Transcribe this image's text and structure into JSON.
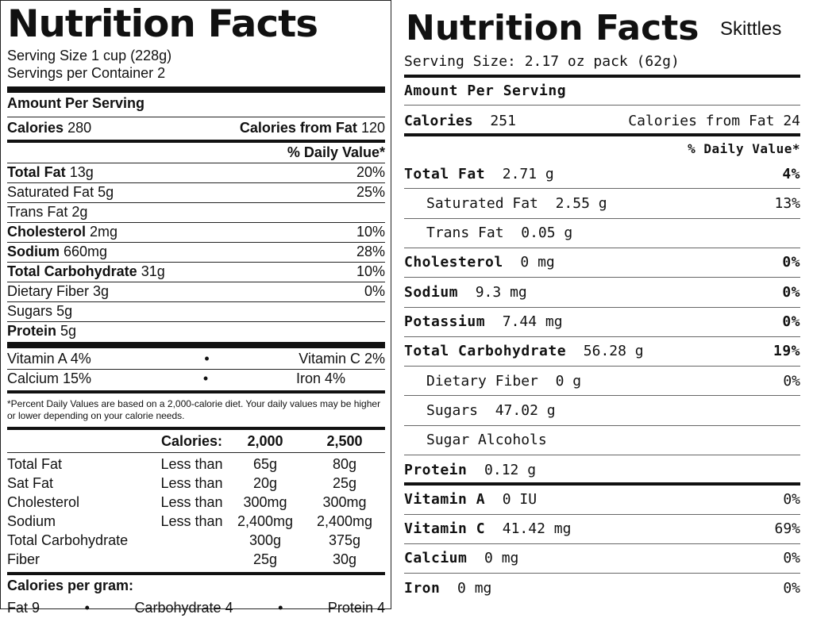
{
  "left_label": {
    "title": "Nutrition Facts",
    "serving_size": "Serving Size 1 cup (228g)",
    "servings_per_container": "Servings per Container 2",
    "amount_per_serving": "Amount Per Serving",
    "calories_label": "Calories",
    "calories_value": "280",
    "calories_from_fat_label": "Calories from Fat",
    "calories_from_fat_value": "120",
    "dv_header": "% Daily Value*",
    "nutrients": [
      {
        "name": "Total Fat",
        "amount": "13g",
        "dv": "20%",
        "bold": true
      },
      {
        "name": "Saturated Fat",
        "amount": "5g",
        "dv": "25%",
        "bold": false
      },
      {
        "name": "Trans Fat",
        "amount": "2g",
        "dv": "",
        "bold": false
      },
      {
        "name": "Cholesterol",
        "amount": "2mg",
        "dv": "10%",
        "bold": true
      },
      {
        "name": "Sodium",
        "amount": "660mg",
        "dv": "28%",
        "bold": true
      },
      {
        "name": "Total Carbohydrate",
        "amount": "31g",
        "dv": "10%",
        "bold": true
      },
      {
        "name": "Dietary Fiber",
        "amount": "3g",
        "dv": "0%",
        "bold": false
      },
      {
        "name": "Sugars",
        "amount": "5g",
        "dv": "",
        "bold": false
      },
      {
        "name": "Protein",
        "amount": "5g",
        "dv": "",
        "bold": true
      }
    ],
    "vitamins": {
      "vitamin_a": "Vitamin A 4%",
      "vitamin_c": "Vitamin C 2%",
      "calcium": "Calcium 15%",
      "iron": "Iron 4%",
      "bullet": "•"
    },
    "footnote": "*Percent Daily Values are based on a 2,000-calorie diet. Your daily values may be higher or lower depending on your calorie needs.",
    "reference_table": {
      "header": [
        "",
        "Calories:",
        "2,000",
        "2,500"
      ],
      "rows": [
        [
          "Total Fat",
          "Less than",
          "65g",
          "80g"
        ],
        [
          "Sat Fat",
          "Less than",
          "20g",
          "25g"
        ],
        [
          "Cholesterol",
          "Less than",
          "300mg",
          "300mg"
        ],
        [
          "Sodium",
          "Less than",
          "2,400mg",
          "2,400mg"
        ],
        [
          "Total Carbohydrate",
          "",
          "300g",
          "375g"
        ],
        [
          "Fiber",
          "",
          "25g",
          "30g"
        ]
      ]
    },
    "calories_per_gram_title": "Calories per gram:",
    "calories_per_gram": {
      "fat": "Fat 9",
      "carbohydrate": "Carbohydrate 4",
      "protein": "Protein 4",
      "bullet": "•"
    }
  },
  "right_label": {
    "title": "Nutrition Facts",
    "product": "Skittles",
    "serving_size": "Serving Size: 2.17 oz pack (62g)",
    "amount_per_serving": "Amount Per Serving",
    "calories_label": "Calories",
    "calories_value": "251",
    "calories_from_fat": "Calories from Fat  24",
    "dv_header": "% Daily Value*",
    "nutrients": [
      {
        "name": "Total Fat",
        "amount": "2.71 g",
        "dv": "4%",
        "indent": false
      },
      {
        "name": "Saturated Fat",
        "amount": "2.55 g",
        "dv": "13%",
        "indent": true
      },
      {
        "name": "Trans Fat",
        "amount": "0.05 g",
        "dv": "",
        "indent": true
      },
      {
        "name": "Cholesterol",
        "amount": "0 mg",
        "dv": "0%",
        "indent": false
      },
      {
        "name": "Sodium",
        "amount": "9.3 mg",
        "dv": "0%",
        "indent": false
      },
      {
        "name": "Potassium",
        "amount": "7.44 mg",
        "dv": "0%",
        "indent": false
      },
      {
        "name": "Total Carbohydrate",
        "amount": "56.28 g",
        "dv": "19%",
        "indent": false
      },
      {
        "name": "Dietary Fiber",
        "amount": "0 g",
        "dv": "0%",
        "indent": true
      },
      {
        "name": "Sugars",
        "amount": "47.02 g",
        "dv": "",
        "indent": true
      },
      {
        "name": "Sugar Alcohols",
        "amount": "",
        "dv": "",
        "indent": true
      },
      {
        "name": "Protein",
        "amount": "0.12 g",
        "dv": "",
        "indent": false
      }
    ],
    "vitamins": [
      {
        "name": "Vitamin A",
        "amount": "0 IU",
        "dv": "0%"
      },
      {
        "name": "Vitamin C",
        "amount": "41.42 mg",
        "dv": "69%"
      },
      {
        "name": "Calcium",
        "amount": "0 mg",
        "dv": "0%"
      },
      {
        "name": "Iron",
        "amount": "0 mg",
        "dv": "0%"
      }
    ]
  }
}
